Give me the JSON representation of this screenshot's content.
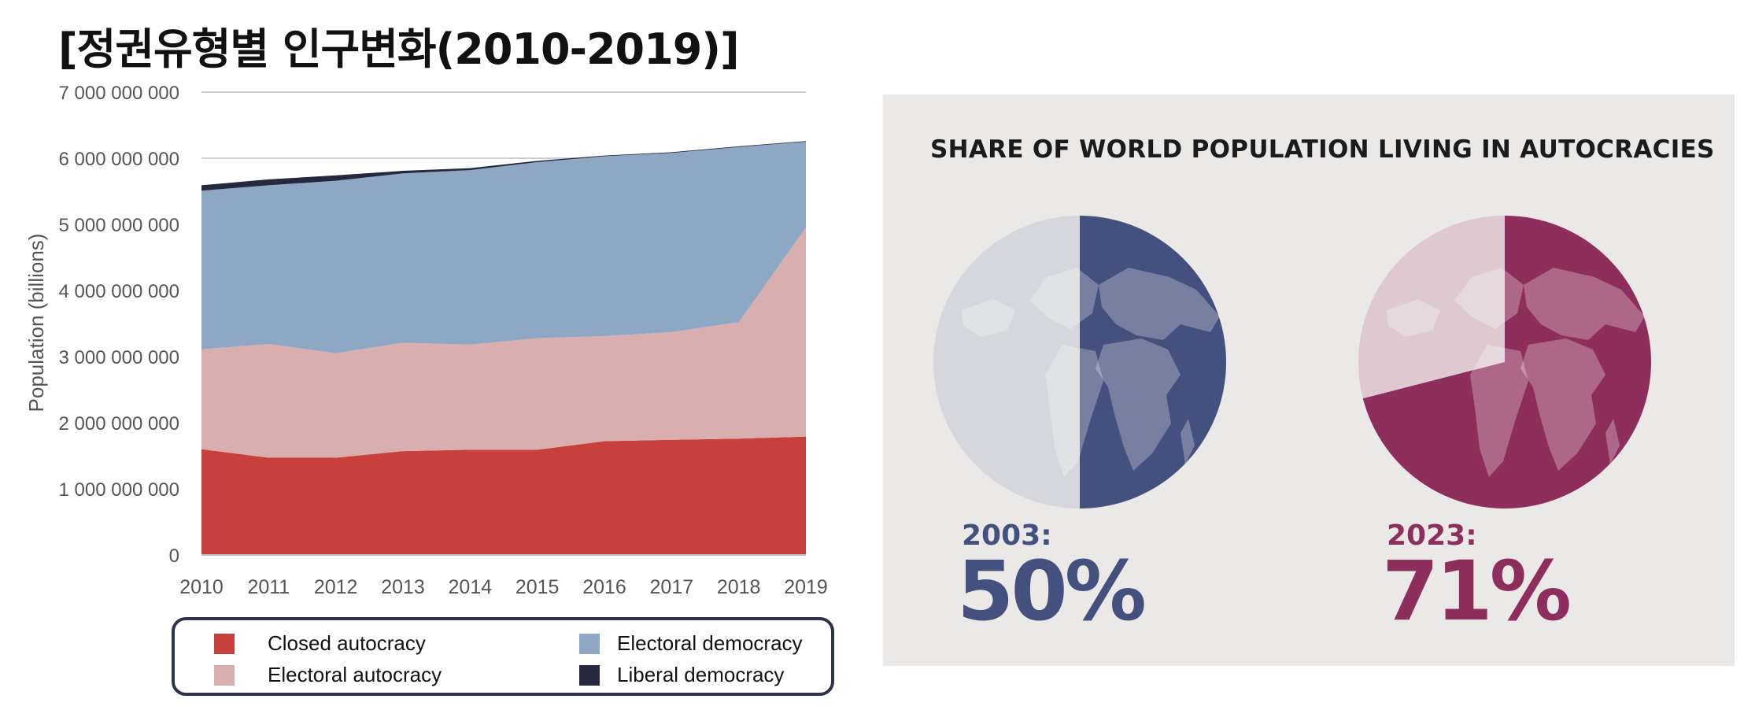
{
  "page": {
    "title": "[정권유형별 인구변화(2010-2019)]"
  },
  "chart_data": [
    {
      "type": "area",
      "stacked": true,
      "title": "",
      "xlabel": "",
      "ylabel": "Population (billions)",
      "x": [
        2010,
        2011,
        2012,
        2013,
        2014,
        2015,
        2016,
        2017,
        2018,
        2019
      ],
      "ylim": [
        0,
        7000000000
      ],
      "yticks": [
        0,
        1000000000,
        2000000000,
        3000000000,
        4000000000,
        5000000000,
        6000000000,
        7000000000
      ],
      "ytick_labels": [
        "0",
        "1 000 000 000",
        "2 000 000 000",
        "3 000 000 000",
        "4 000 000 000",
        "5 000 000 000",
        "6 000 000 000",
        "7 000 000 000"
      ],
      "grid": true,
      "legend_position": "bottom",
      "series": [
        {
          "name": "Closed autocracy",
          "color": "#c8403b",
          "values": [
            1600000000,
            1470000000,
            1470000000,
            1570000000,
            1590000000,
            1590000000,
            1720000000,
            1740000000,
            1760000000,
            1790000000
          ]
        },
        {
          "name": "Electoral autocracy",
          "color": "#d8aeae",
          "values": [
            1510000000,
            1720000000,
            1580000000,
            1640000000,
            1590000000,
            1690000000,
            1590000000,
            1630000000,
            1760000000,
            3160000000
          ]
        },
        {
          "name": "Electoral democracy",
          "color": "#8ea7c4",
          "values": [
            2400000000,
            2400000000,
            2610000000,
            2560000000,
            2640000000,
            2660000000,
            2720000000,
            2710000000,
            2650000000,
            1300000000
          ]
        },
        {
          "name": "Liberal democracy",
          "color": "#262840",
          "values": [
            80000000,
            90000000,
            80000000,
            40000000,
            30000000,
            20000000,
            10000000,
            10000000,
            10000000,
            10000000
          ]
        }
      ]
    },
    {
      "type": "pie",
      "title": "SHARE OF WORLD POPULATION LIVING IN AUTOCRACIES",
      "panels": [
        {
          "year_label": "2003:",
          "value_label": "50%",
          "value": 50,
          "color": "#44507e",
          "rest_color": "#d5d7dc"
        },
        {
          "year_label": "2023:",
          "value_label": "71%",
          "value": 71,
          "color": "#8e2e5c",
          "rest_color": "#dec9d1"
        }
      ]
    }
  ]
}
